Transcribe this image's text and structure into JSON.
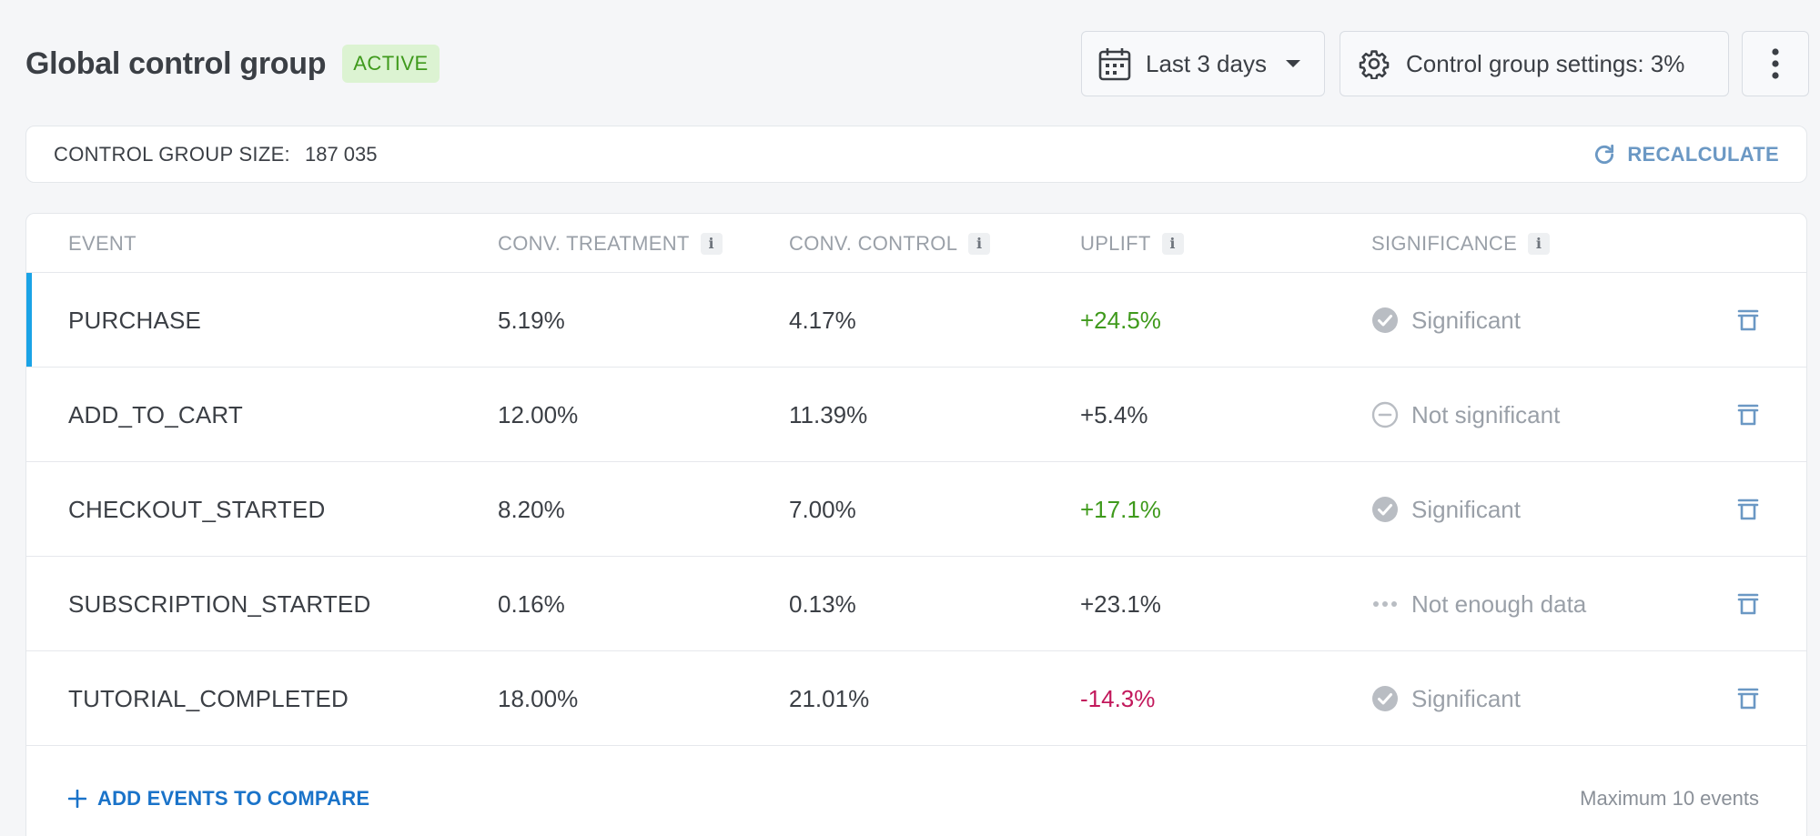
{
  "header": {
    "title": "Global control group",
    "status": "ACTIVE",
    "date_range": "Last 3 days",
    "settings_label": "Control group settings: 3%"
  },
  "size_card": {
    "label": "CONTROL GROUP SIZE:",
    "value": "187 035",
    "recalculate": "RECALCULATE"
  },
  "table": {
    "columns": {
      "event": "EVENT",
      "treatment": "CONV. TREATMENT",
      "control": "CONV. CONTROL",
      "uplift": "UPLIFT",
      "significance": "SIGNIFICANCE"
    },
    "info_glyph": "i",
    "rows": [
      {
        "event": "PURCHASE",
        "treatment": "5.19%",
        "control": "4.17%",
        "uplift": "+24.5%",
        "uplift_tone": "positive",
        "significance": "Significant",
        "sig_icon": "check-circle-icon"
      },
      {
        "event": "ADD_TO_CART",
        "treatment": "12.00%",
        "control": "11.39%",
        "uplift": "+5.4%",
        "uplift_tone": "neutral",
        "significance": "Not significant",
        "sig_icon": "minus-circle-icon"
      },
      {
        "event": "CHECKOUT_STARTED",
        "treatment": "8.20%",
        "control": "7.00%",
        "uplift": "+17.1%",
        "uplift_tone": "positive",
        "significance": "Significant",
        "sig_icon": "check-circle-icon"
      },
      {
        "event": "SUBSCRIPTION_STARTED",
        "treatment": "0.16%",
        "control": "0.13%",
        "uplift": "+23.1%",
        "uplift_tone": "neutral",
        "significance": "Not enough data",
        "sig_icon": "ellipsis-icon"
      },
      {
        "event": "TUTORIAL_COMPLETED",
        "treatment": "18.00%",
        "control": "21.01%",
        "uplift": "-14.3%",
        "uplift_tone": "negative",
        "significance": "Significant",
        "sig_icon": "check-circle-icon"
      }
    ]
  },
  "footer": {
    "add_events": "ADD EVENTS TO COMPARE",
    "max_events": "Maximum 10 events"
  },
  "colors": {
    "accent_blue": "#1a73c9",
    "positive": "#3f9a1c",
    "negative": "#c2185b",
    "selected_bar": "#1aa3e6",
    "recalc": "#6b98c4"
  }
}
